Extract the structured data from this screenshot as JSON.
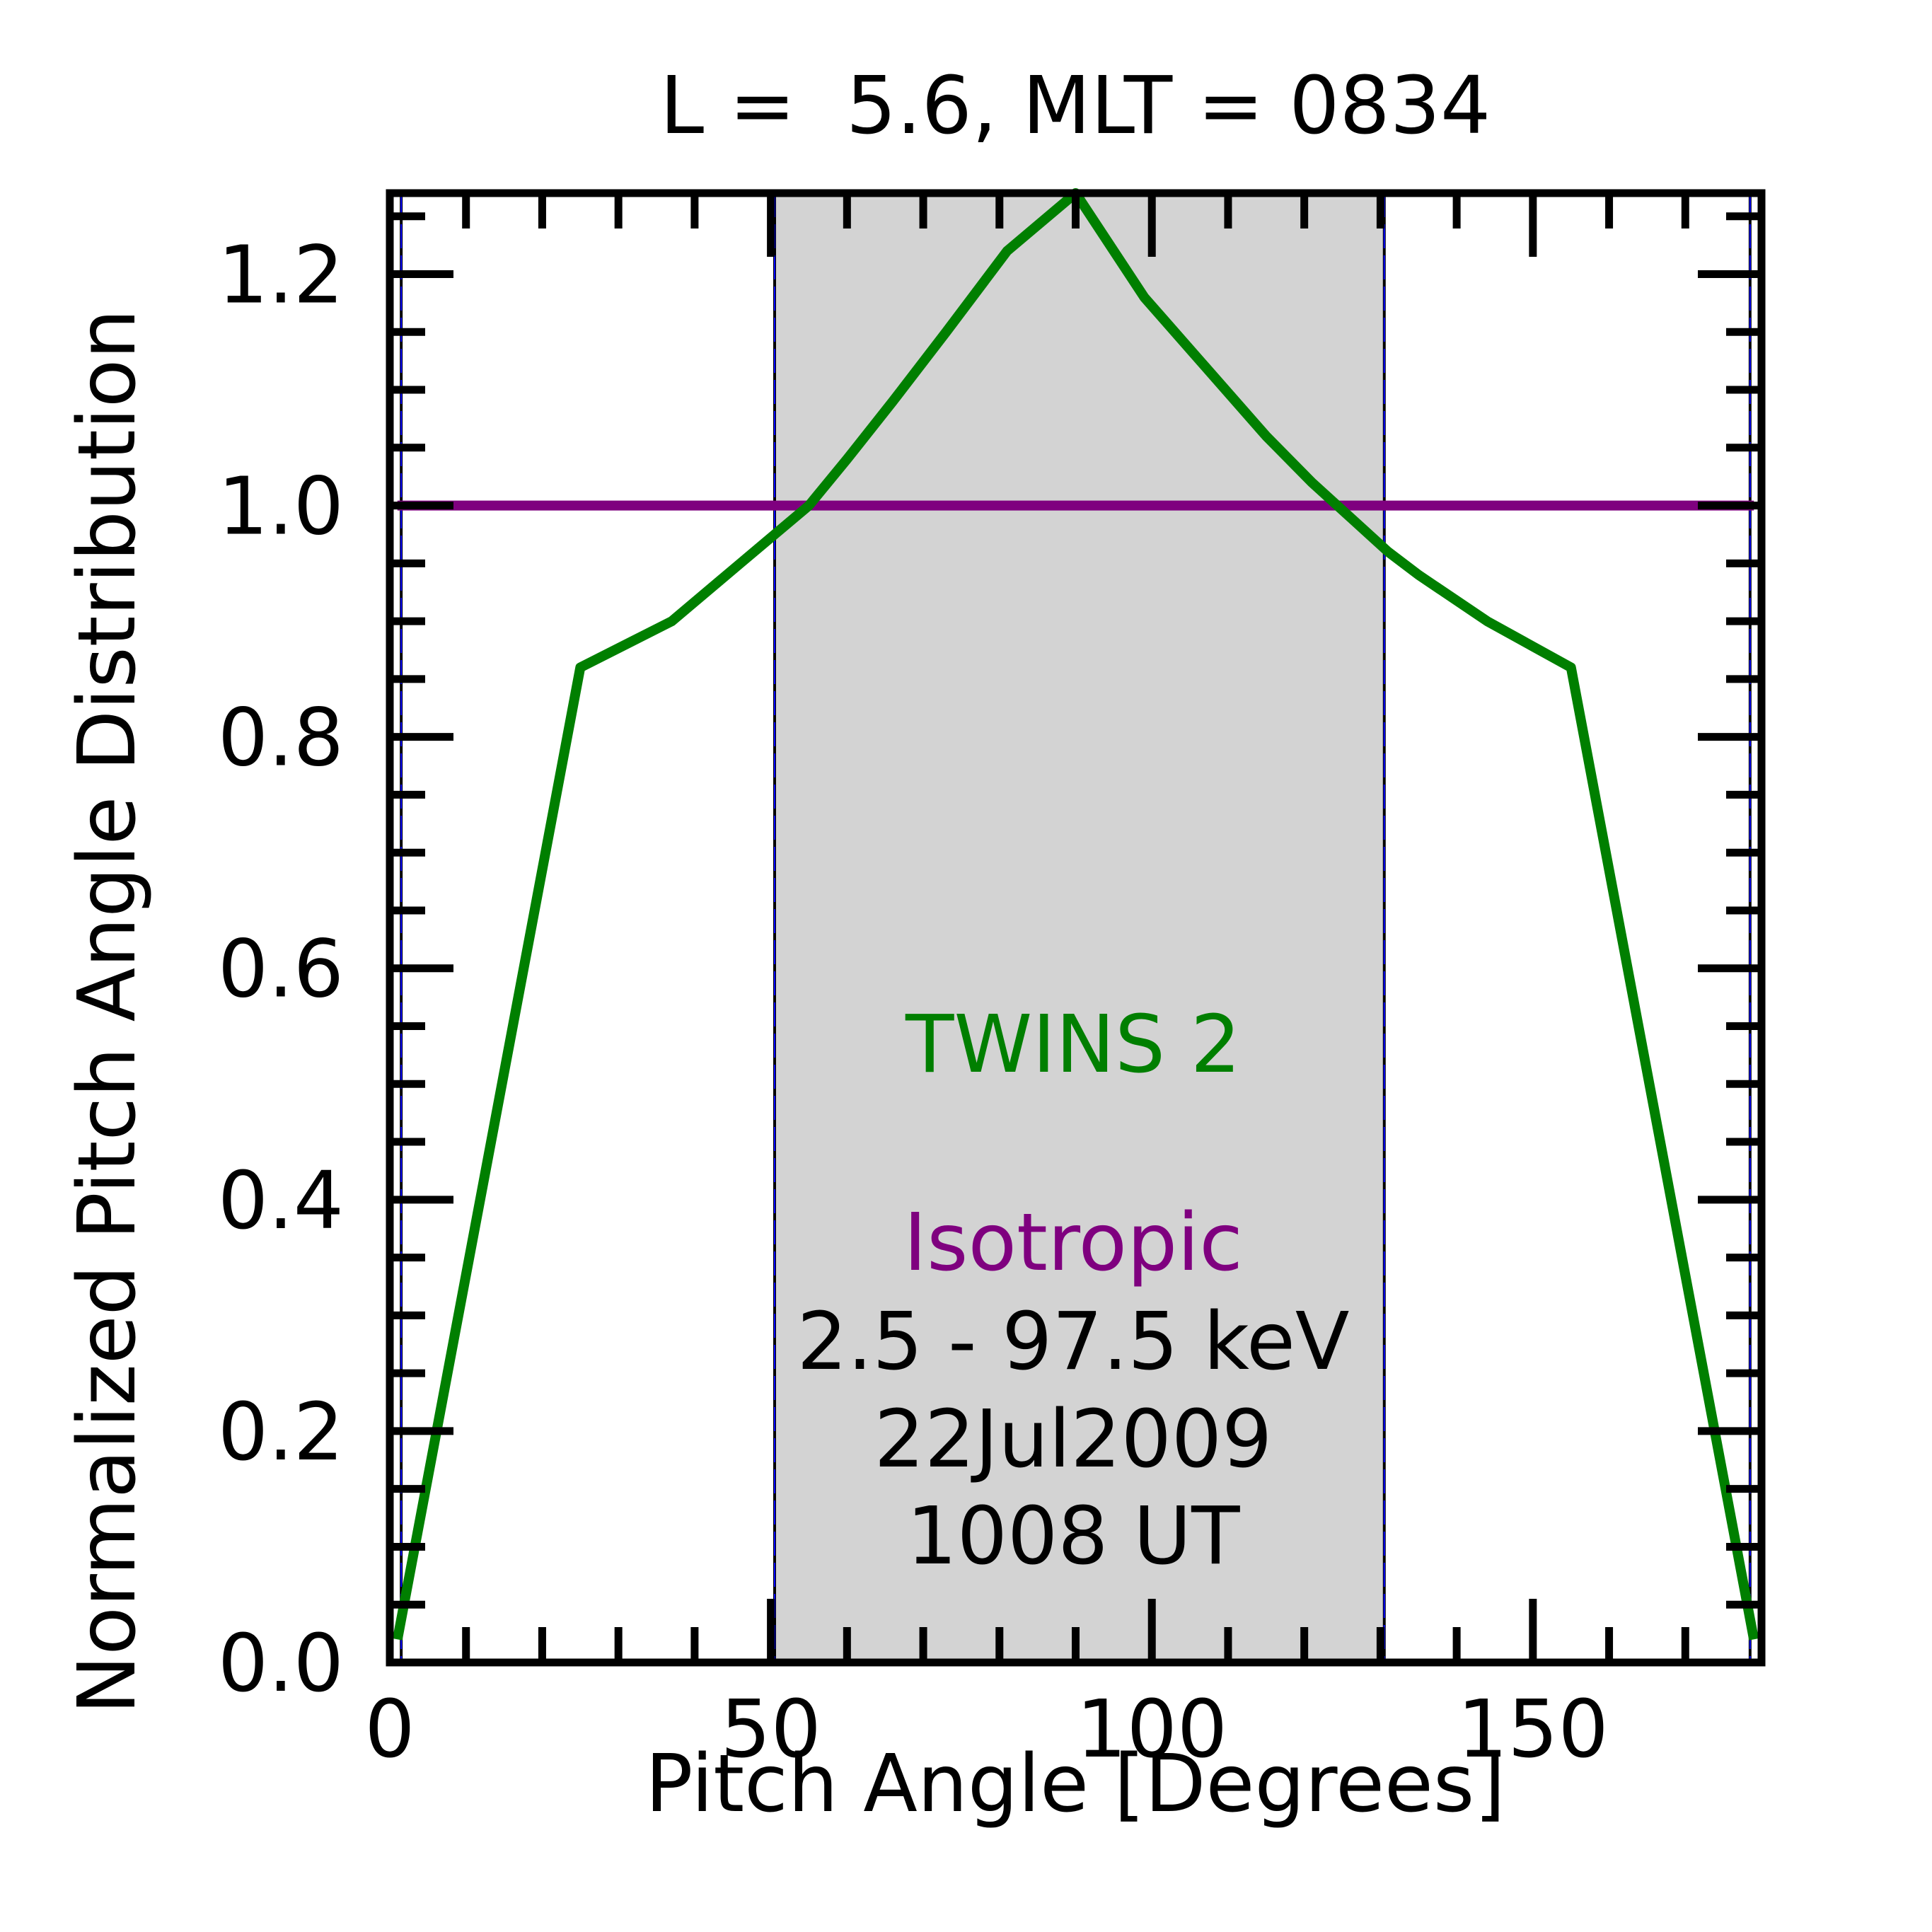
{
  "chart_data": {
    "type": "line",
    "title": "L =  5.6, MLT = 0834",
    "xlabel": "Pitch Angle [Degrees]",
    "ylabel": "Normalized Pitch Angle Distribution",
    "xlim": [
      0,
      180
    ],
    "ylim": [
      0,
      1.27
    ],
    "x_ticks": [
      0,
      50,
      100,
      150
    ],
    "x_tick_labels": [
      "0",
      "50",
      "100",
      "150"
    ],
    "y_ticks": [
      0.0,
      0.2,
      0.4,
      0.6,
      0.8,
      1.0,
      1.2
    ],
    "y_tick_labels": [
      "0.0",
      "0.2",
      "0.4",
      "0.6",
      "0.8",
      "1.0",
      "1.2"
    ],
    "grid": false,
    "shaded_region": {
      "x_start": 50.5,
      "x_end": 130.5,
      "color": "#d3d3d3"
    },
    "vertical_lines": [
      1.5,
      50.5,
      130.5,
      178.5
    ],
    "series": [
      {
        "name": "TWINS 2",
        "color": "#007f00",
        "x": [
          1,
          25,
          37,
          46,
          55,
          60,
          66,
          73,
          81,
          90,
          99,
          107,
          115,
          121,
          126,
          131,
          135,
          144,
          155,
          179
        ],
        "y": [
          0.02,
          0.86,
          0.9,
          0.95,
          1.0,
          1.04,
          1.09,
          1.15,
          1.22,
          1.27,
          1.18,
          1.12,
          1.06,
          1.02,
          0.99,
          0.96,
          0.94,
          0.9,
          0.86,
          0.02
        ]
      },
      {
        "name": "Isotropic",
        "color": "#7f007f",
        "x": [
          1,
          179
        ],
        "y": [
          1.0,
          1.0
        ]
      }
    ],
    "annotations": {
      "energy": "2.5 - 97.5 keV",
      "date": "22Jul2009",
      "time": "1008 UT"
    }
  }
}
